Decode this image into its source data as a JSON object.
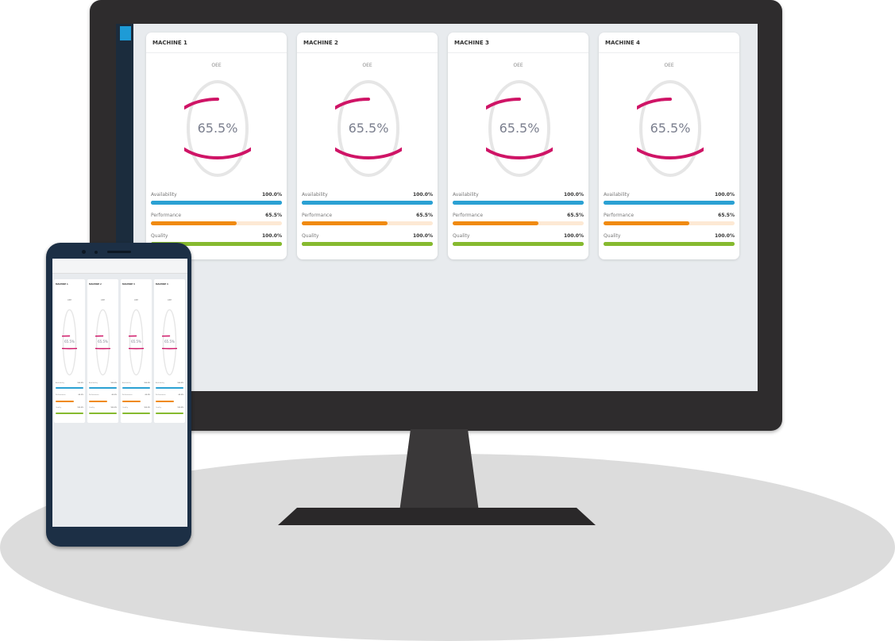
{
  "colors": {
    "availability": "#2ba1d3",
    "performance": "#f08a10",
    "performance_track": "#fde9d4",
    "quality": "#86ba2f",
    "gauge": "#cf1466",
    "gauge_track": "#e6e6e6"
  },
  "machines": [
    {
      "title": "MACHINE 1",
      "oee_label": "OEE",
      "oee": "65.5%",
      "oee_value": 65.5,
      "metrics": [
        {
          "label": "Availability",
          "value": "100.0%",
          "fraction": 1.0
        },
        {
          "label": "Performance",
          "value": "65.5%",
          "fraction": 0.655
        },
        {
          "label": "Quality",
          "value": "100.0%",
          "fraction": 1.0
        }
      ]
    },
    {
      "title": "MACHINE 2",
      "oee_label": "OEE",
      "oee": "65.5%",
      "oee_value": 65.5,
      "metrics": [
        {
          "label": "Availability",
          "value": "100.0%",
          "fraction": 1.0
        },
        {
          "label": "Performance",
          "value": "65.5%",
          "fraction": 0.655
        },
        {
          "label": "Quality",
          "value": "100.0%",
          "fraction": 1.0
        }
      ]
    },
    {
      "title": "MACHINE 3",
      "oee_label": "OEE",
      "oee": "65.5%",
      "oee_value": 65.5,
      "metrics": [
        {
          "label": "Availability",
          "value": "100.0%",
          "fraction": 1.0
        },
        {
          "label": "Performance",
          "value": "65.5%",
          "fraction": 0.655
        },
        {
          "label": "Quality",
          "value": "100.0%",
          "fraction": 1.0
        }
      ]
    },
    {
      "title": "MACHINE 4",
      "oee_label": "OEE",
      "oee": "65.5%",
      "oee_value": 65.5,
      "metrics": [
        {
          "label": "Availability",
          "value": "100.0%",
          "fraction": 1.0
        },
        {
          "label": "Performance",
          "value": "65.5%",
          "fraction": 0.655
        },
        {
          "label": "Quality",
          "value": "100.0%",
          "fraction": 1.0
        }
      ]
    }
  ]
}
